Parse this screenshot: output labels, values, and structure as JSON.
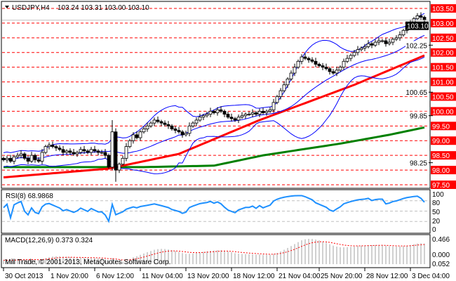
{
  "header": {
    "symbol": "USDJPY,H4",
    "ohlc": "103.24 103.31 103.00 103.10"
  },
  "rsi": {
    "label": "RSI(8) 68.9868",
    "ticks": [
      "100",
      "80",
      "50",
      "20",
      "0"
    ]
  },
  "macd": {
    "label": "MACD(12,26,9) 0.373 0.324",
    "ticks": [
      "0.466",
      "0.000",
      "0.052"
    ]
  },
  "copyright": "Mill Trade, © 2001-2013, MetaQuotes Software Corp.",
  "current_price": "103.10",
  "colors": {
    "grid": "#ff0000",
    "bands": "#0000ff",
    "ma_fast": "#ff0000",
    "ma_slow": "#008000",
    "rsi": "#1e90ff",
    "macd_hist": "#c0c0c0",
    "macd_signal": "#ff0000"
  },
  "chart_data": {
    "type": "candlestick",
    "title": "USDJPY,H4",
    "ylim": [
      97.5,
      103.5
    ],
    "price_levels": [
      "97.50",
      "98.00",
      "98.50",
      "99.00",
      "99.50",
      "100.00",
      "100.50",
      "101.00",
      "101.50",
      "102.00",
      "102.50",
      "103.00",
      "103.50"
    ],
    "extra_labels": [
      "98.25",
      "99.85",
      "100.65",
      "102.25"
    ],
    "time_labels": [
      "30 Oct 2013",
      "1 Nov 20:00",
      "6 Nov 12:00",
      "11 Nov 04:00",
      "13 Nov 20:00",
      "18 Nov 12:00",
      "21 Nov 04:00",
      "25 Nov 20:00",
      "28 Nov 12:00",
      "3 Dec 04:00"
    ],
    "time_label_bars": [
      0,
      13,
      26,
      39,
      52,
      65,
      78,
      90,
      103,
      116
    ],
    "closes": [
      98.35,
      98.4,
      98.3,
      98.45,
      98.5,
      98.55,
      98.4,
      98.3,
      98.5,
      98.35,
      98.3,
      98.6,
      98.8,
      98.85,
      98.8,
      98.75,
      98.7,
      98.6,
      98.65,
      98.6,
      98.55,
      98.6,
      98.7,
      98.65,
      98.6,
      98.7,
      98.65,
      98.6,
      98.6,
      98.5,
      98.1,
      99.3,
      98.0,
      98.2,
      98.4,
      98.8,
      99.0,
      99.2,
      99.1,
      99.3,
      99.4,
      99.5,
      99.6,
      99.7,
      99.65,
      99.6,
      99.55,
      99.5,
      99.4,
      99.35,
      99.3,
      99.2,
      99.25,
      99.5,
      99.6,
      99.7,
      99.8,
      99.85,
      99.9,
      100.0,
      99.95,
      100.05,
      100.0,
      99.9,
      99.8,
      99.75,
      99.7,
      99.8,
      99.85,
      99.9,
      99.9,
      99.95,
      99.9,
      100.0,
      99.95,
      100.0,
      100.05,
      100.3,
      100.5,
      100.7,
      100.9,
      101.1,
      101.3,
      101.5,
      101.7,
      101.85,
      101.8,
      101.75,
      101.7,
      101.6,
      101.55,
      101.5,
      101.45,
      101.35,
      101.3,
      101.4,
      101.5,
      101.7,
      101.8,
      101.9,
      102.0,
      102.1,
      102.15,
      102.2,
      102.3,
      102.25,
      102.35,
      102.4,
      102.4,
      102.3,
      102.35,
      102.45,
      102.5,
      102.6,
      102.75,
      102.9,
      103.0,
      103.15,
      103.25,
      103.2,
      103.1
    ],
    "ma_fast_keypoints": [
      [
        0,
        97.75
      ],
      [
        30,
        98.05
      ],
      [
        50,
        98.55
      ],
      [
        73,
        99.7
      ],
      [
        100,
        100.9
      ],
      [
        120,
        101.9
      ]
    ],
    "ma_slow_keypoints": [
      [
        0,
        98.1
      ],
      [
        40,
        98.1
      ],
      [
        60,
        98.15
      ],
      [
        74,
        98.5
      ],
      [
        96,
        98.9
      ],
      [
        110,
        99.2
      ],
      [
        120,
        99.45
      ]
    ],
    "rsi_levels": [
      80,
      50,
      20
    ],
    "macd_range": [
      0,
      0.466
    ]
  }
}
